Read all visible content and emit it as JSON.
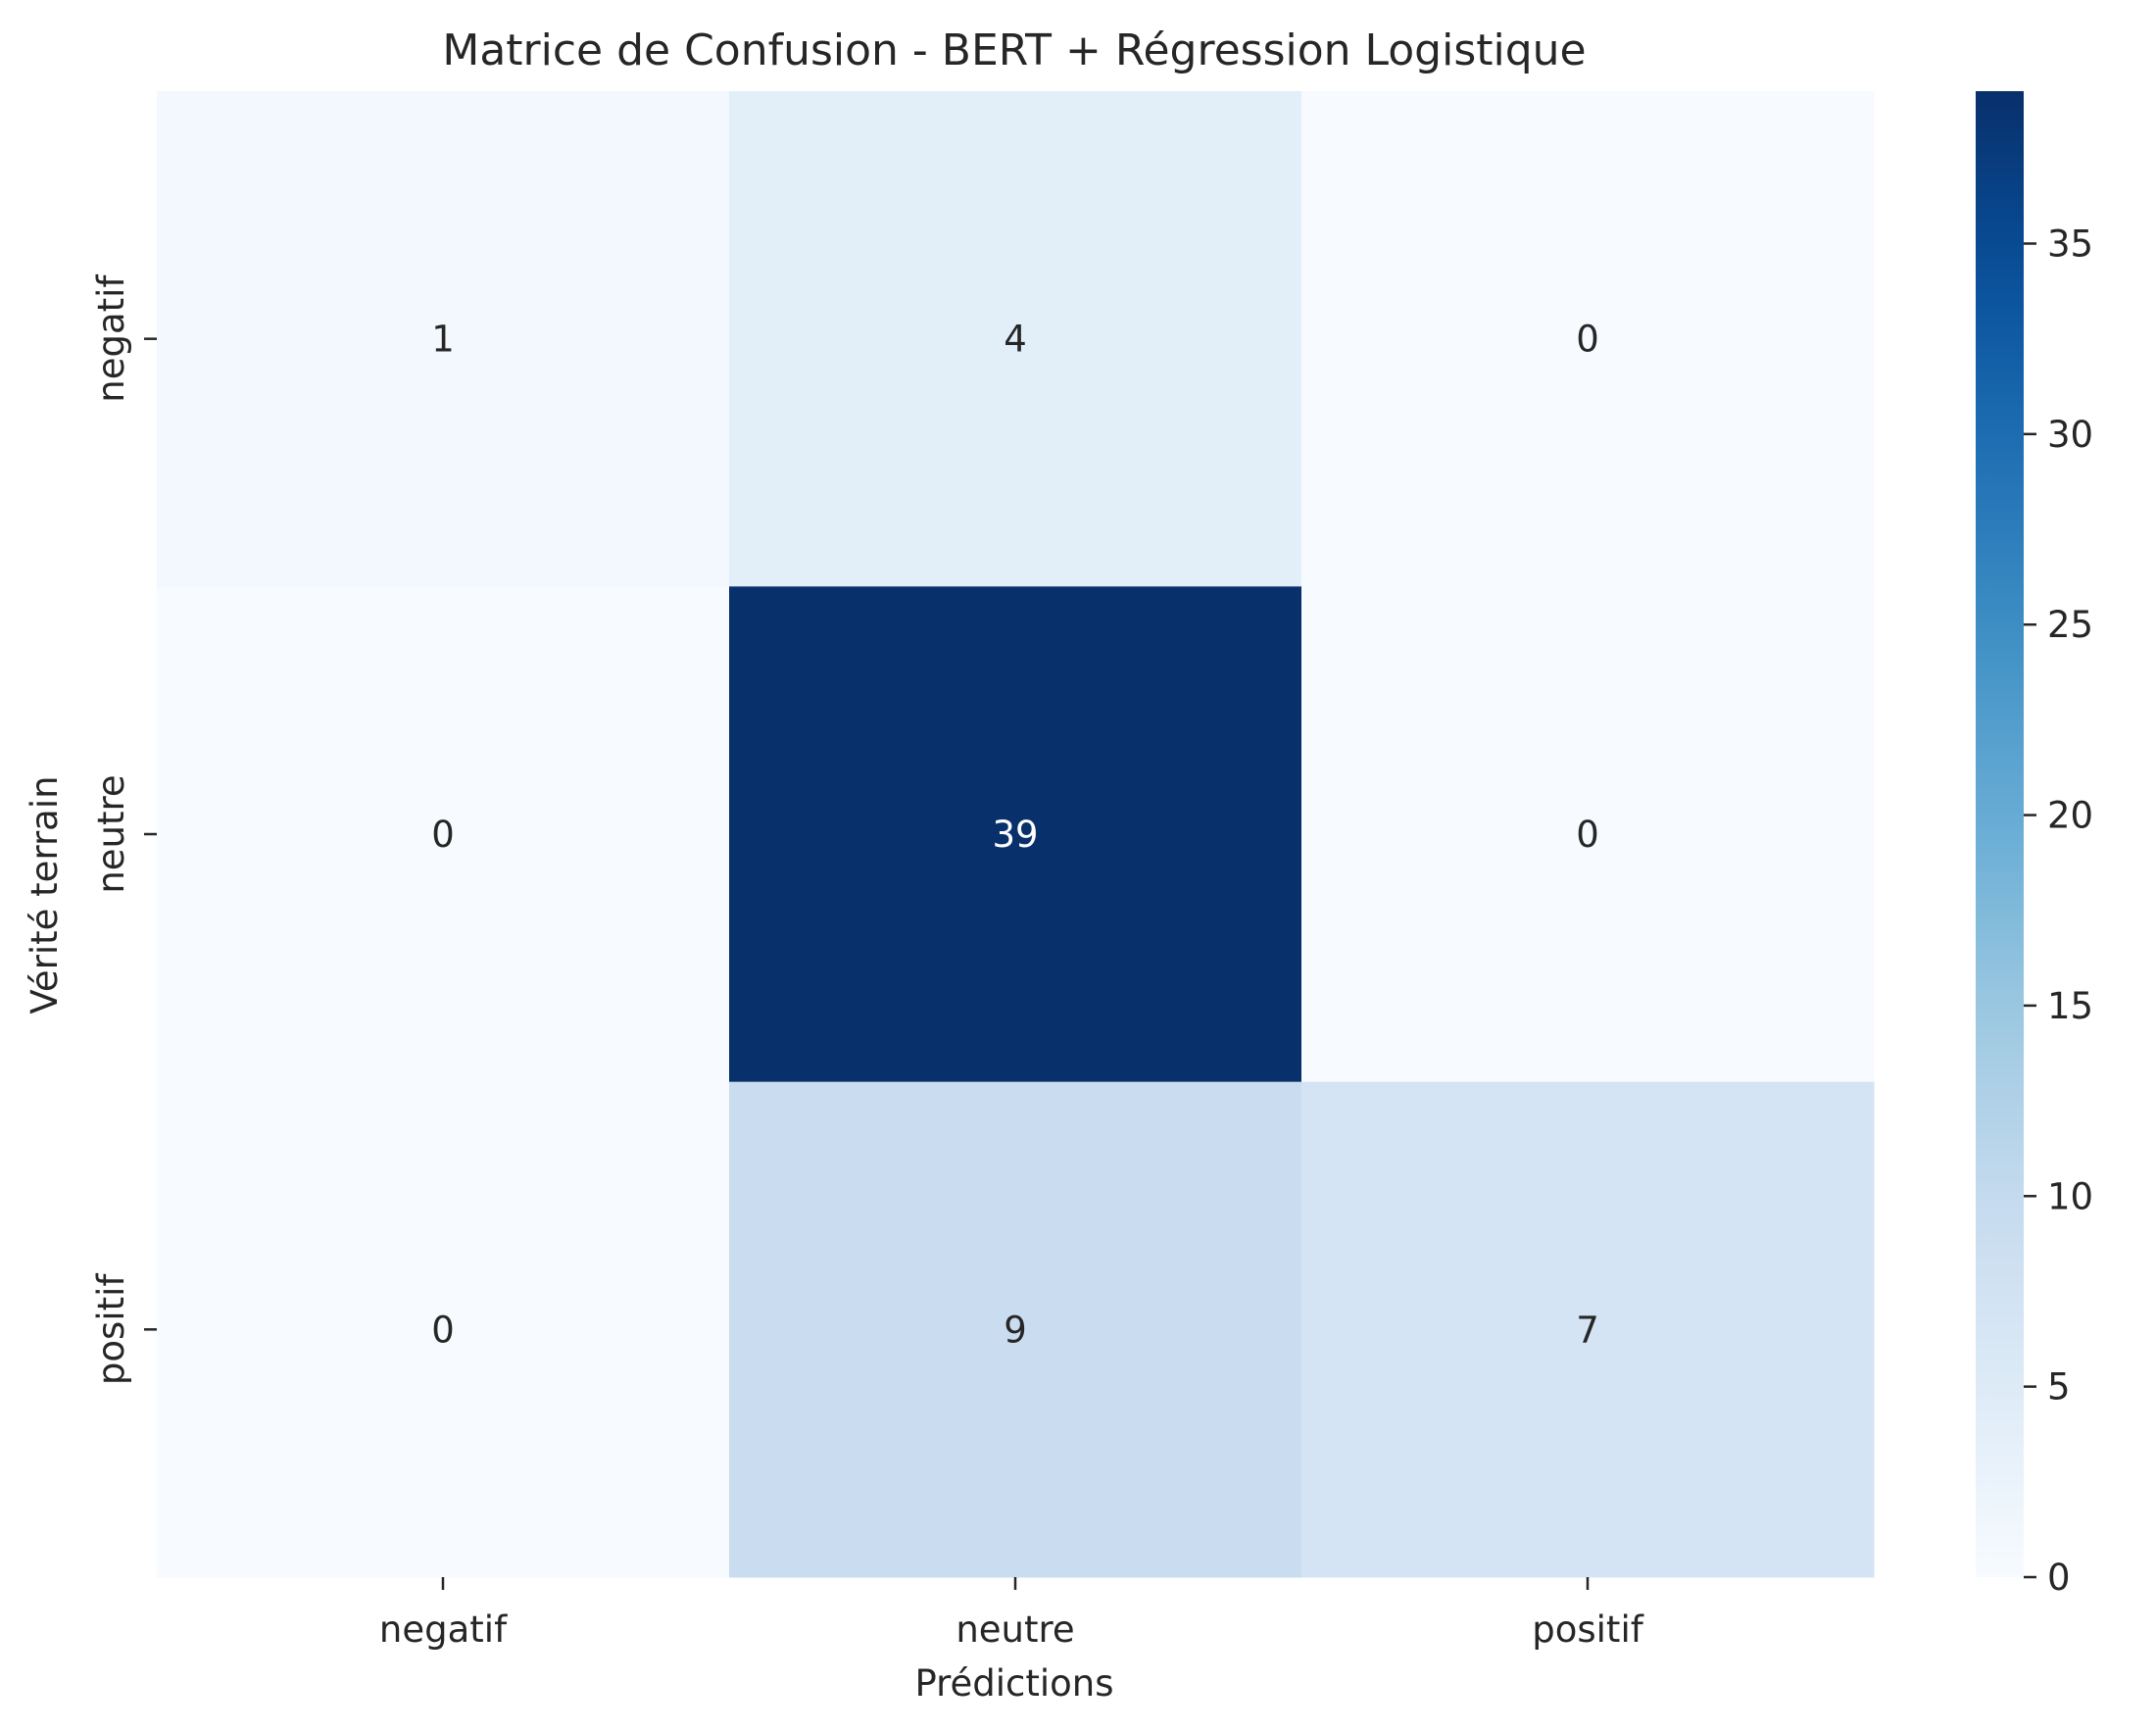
{
  "chart_data": {
    "type": "heatmap",
    "title": "Matrice de Confusion - BERT + Régression Logistique",
    "xlabel": "Prédictions",
    "ylabel": "Vérité terrain",
    "x_categories": [
      "negatif",
      "neutre",
      "positif"
    ],
    "y_categories": [
      "negatif",
      "neutre",
      "positif"
    ],
    "values": [
      [
        1,
        4,
        0
      ],
      [
        0,
        39,
        0
      ],
      [
        0,
        9,
        7
      ]
    ],
    "colormap": "Blues",
    "colorbar": {
      "range": [
        0,
        39
      ],
      "ticks": [
        0,
        5,
        10,
        15,
        20,
        25,
        30,
        35
      ],
      "tick_labels": [
        "0",
        "5",
        "10",
        "15",
        "20",
        "25",
        "30",
        "35"
      ]
    },
    "annotation_colors": {
      "light": "#262626",
      "dark": "#ffffff"
    },
    "grid": false,
    "legend": "colorbar-right"
  }
}
